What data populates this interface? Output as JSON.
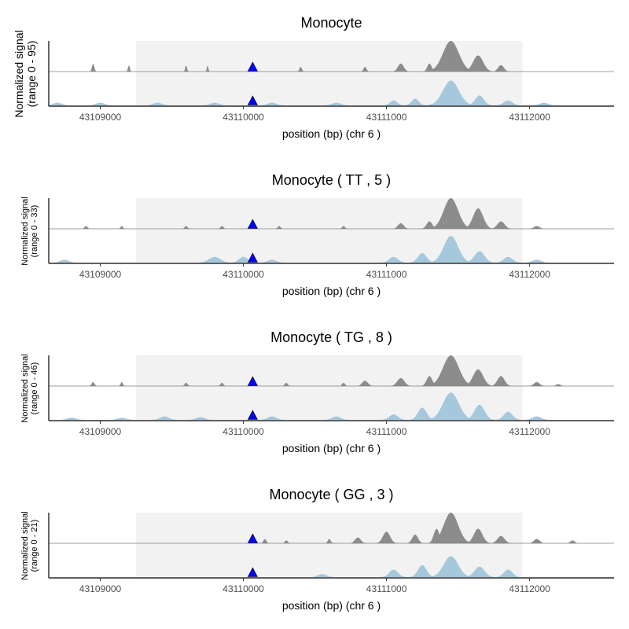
{
  "colors": {
    "highlight": "#f2f2f2",
    "track_top": "#8c8c8c",
    "track_bottom": "#a6c8dc",
    "marker": "#0000ff",
    "axis": "#000000"
  },
  "chart_data": [
    {
      "type": "area",
      "title": "Monocyte",
      "xlabel": "position (bp) (chr 6 )",
      "ylabel_line1": "Normalized signal",
      "ylabel_line2": "(range 0 - 95)",
      "ylim": [
        0,
        95
      ],
      "xlim": [
        43108640,
        43112590
      ],
      "xticks": [
        43109000,
        43110000,
        43111000,
        43112000
      ],
      "highlight": [
        43109250,
        43111950
      ],
      "marker_x": 43110065,
      "series": [
        {
          "peaks": [
            [
              43108950,
              25,
              8
            ],
            [
              43109200,
              20,
              6
            ],
            [
              43109600,
              20,
              6
            ],
            [
              43109750,
              20,
              5
            ],
            [
              43110400,
              15,
              8
            ],
            [
              43110850,
              15,
              10
            ],
            [
              43111100,
              25,
              20
            ],
            [
              43111300,
              25,
              15
            ],
            [
              43111450,
              95,
              55
            ],
            [
              43111640,
              50,
              35
            ],
            [
              43111800,
              20,
              20
            ]
          ]
        },
        {
          "peaks": [
            [
              43108700,
              8,
              30
            ],
            [
              43109000,
              8,
              30
            ],
            [
              43109400,
              8,
              30
            ],
            [
              43109800,
              8,
              30
            ],
            [
              43110200,
              8,
              30
            ],
            [
              43110650,
              8,
              30
            ],
            [
              43111050,
              15,
              25
            ],
            [
              43111200,
              20,
              25
            ],
            [
              43111450,
              75,
              55
            ],
            [
              43111650,
              30,
              30
            ],
            [
              43111850,
              15,
              30
            ],
            [
              43112100,
              8,
              30
            ]
          ]
        }
      ]
    },
    {
      "type": "area",
      "title": "Monocyte ( TT , 5 )",
      "xlabel": "position (bp) (chr 6 )",
      "ylabel_line1": "Normalized signal",
      "ylabel_line2": "(range 0 - 33)",
      "ylim": [
        0,
        33
      ],
      "xlim": [
        43108640,
        43112590
      ],
      "xticks": [
        43109000,
        43110000,
        43111000,
        43112000
      ],
      "highlight": [
        43109250,
        43111950
      ],
      "marker_x": 43110065,
      "series": [
        {
          "peaks": [
            [
              43108900,
              3,
              10
            ],
            [
              43109150,
              3,
              8
            ],
            [
              43109600,
              3,
              10
            ],
            [
              43109850,
              3,
              10
            ],
            [
              43110250,
              3,
              10
            ],
            [
              43110700,
              3,
              10
            ],
            [
              43111100,
              6,
              20
            ],
            [
              43111300,
              8,
              20
            ],
            [
              43111450,
              33,
              50
            ],
            [
              43111640,
              22,
              35
            ],
            [
              43111800,
              8,
              25
            ],
            [
              43112050,
              3,
              20
            ]
          ]
        },
        {
          "peaks": [
            [
              43108750,
              3,
              30
            ],
            [
              43109800,
              6,
              40
            ],
            [
              43110000,
              6,
              30
            ],
            [
              43110200,
              3,
              30
            ],
            [
              43111050,
              6,
              30
            ],
            [
              43111250,
              10,
              30
            ],
            [
              43111450,
              28,
              50
            ],
            [
              43111650,
              12,
              35
            ],
            [
              43111850,
              6,
              30
            ],
            [
              43112050,
              3,
              30
            ]
          ]
        }
      ]
    },
    {
      "type": "area",
      "title": "Monocyte ( TG , 8 )",
      "xlabel": "position (bp) (chr 6 )",
      "ylabel_line1": "Normalized signal",
      "ylabel_line2": "(range 0 - 46)",
      "ylim": [
        0,
        46
      ],
      "xlim": [
        43108640,
        43112590
      ],
      "xticks": [
        43109000,
        43110000,
        43111000,
        43112000
      ],
      "highlight": [
        43109250,
        43111950
      ],
      "marker_x": 43110065,
      "series": [
        {
          "peaks": [
            [
              43108950,
              6,
              10
            ],
            [
              43109150,
              6,
              8
            ],
            [
              43109600,
              5,
              10
            ],
            [
              43109850,
              5,
              10
            ],
            [
              43110300,
              5,
              10
            ],
            [
              43110700,
              5,
              10
            ],
            [
              43110850,
              8,
              20
            ],
            [
              43111100,
              12,
              25
            ],
            [
              43111300,
              15,
              20
            ],
            [
              43111450,
              46,
              55
            ],
            [
              43111640,
              25,
              35
            ],
            [
              43111800,
              15,
              25
            ],
            [
              43112050,
              6,
              20
            ],
            [
              43112200,
              3,
              15
            ]
          ]
        },
        {
          "peaks": [
            [
              43108800,
              3,
              30
            ],
            [
              43109150,
              3,
              30
            ],
            [
              43109450,
              5,
              30
            ],
            [
              43109700,
              4,
              30
            ],
            [
              43110200,
              5,
              30
            ],
            [
              43110650,
              5,
              30
            ],
            [
              43111050,
              8,
              30
            ],
            [
              43111250,
              18,
              30
            ],
            [
              43111450,
              40,
              55
            ],
            [
              43111650,
              22,
              35
            ],
            [
              43111850,
              12,
              30
            ],
            [
              43112050,
              5,
              30
            ]
          ]
        }
      ]
    },
    {
      "type": "area",
      "title": "Monocyte ( GG , 3 )",
      "xlabel": "position (bp) (chr 6 )",
      "ylabel_line1": "Normalized signal",
      "ylabel_line2": "(range 0 - 21)",
      "ylim": [
        0,
        21
      ],
      "xlim": [
        43108640,
        43112590
      ],
      "xticks": [
        43109000,
        43110000,
        43111000,
        43112000
      ],
      "highlight": [
        43109250,
        43111950
      ],
      "marker_x": 43110065,
      "series": [
        {
          "peaks": [
            [
              43110150,
              3,
              10
            ],
            [
              43110300,
              2,
              10
            ],
            [
              43110600,
              3,
              10
            ],
            [
              43110800,
              4,
              20
            ],
            [
              43111000,
              8,
              25
            ],
            [
              43111200,
              6,
              20
            ],
            [
              43111350,
              10,
              20
            ],
            [
              43111450,
              21,
              50
            ],
            [
              43111640,
              10,
              30
            ],
            [
              43111800,
              5,
              25
            ],
            [
              43112050,
              3,
              20
            ],
            [
              43112300,
              2,
              15
            ]
          ]
        },
        {
          "peaks": [
            [
              43110550,
              2,
              30
            ],
            [
              43111050,
              5,
              30
            ],
            [
              43111250,
              8,
              30
            ],
            [
              43111450,
              14,
              50
            ],
            [
              43111650,
              7,
              35
            ],
            [
              43111850,
              5,
              30
            ]
          ]
        }
      ]
    }
  ]
}
